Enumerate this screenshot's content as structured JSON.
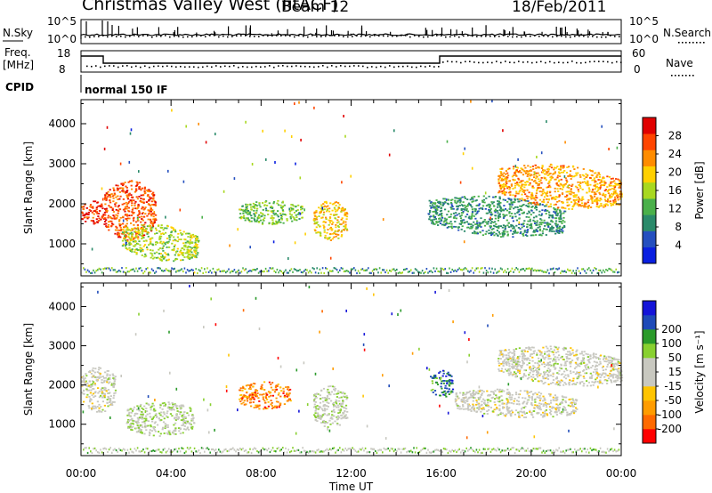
{
  "header": {
    "title": "Christmas Valley West (fitACF)",
    "beam": "Beam 12",
    "date": "18/Feb/2011"
  },
  "panel_labels": {
    "nsky": "N.Sky",
    "nsearch": "N.Search",
    "freq_line1": "Freq.",
    "freq_line2": "[MHz]",
    "nave": "Nave",
    "cpid": "CPID",
    "cpid_value": "normal 150 IF"
  },
  "noise_axis": {
    "left_ticks": [
      "10^5",
      "10^0"
    ],
    "right_ticks": [
      "10^5",
      "10^0"
    ]
  },
  "freq_axis": {
    "left_ticks": [
      "18",
      "8"
    ],
    "right_ticks": [
      "60",
      "0"
    ]
  },
  "colors": {
    "power_scale": [
      "#0a1fe0",
      "#244fbf",
      "#2a8a6a",
      "#4ab04a",
      "#a8d820",
      "#ffd000",
      "#ff8c00",
      "#ff4500",
      "#e00000"
    ],
    "velocity_scale": [
      "#ff0000",
      "#ff6a00",
      "#ff9c00",
      "#ffc400",
      "#c8c8c0",
      "#c8c8c0",
      "#88d030",
      "#2a9a2a",
      "#1e4ab8",
      "#1414d8"
    ]
  },
  "chart_data": [
    {
      "type": "heatmap",
      "name": "power",
      "ylabel": "Slant Range [km]",
      "ylim": [
        200,
        4600
      ],
      "xlim": [
        0,
        24
      ],
      "y_ticks": [
        1000,
        2000,
        3000,
        4000
      ],
      "colorbar": {
        "label": "Power [dB]",
        "ticks": [
          "4",
          "8",
          "12",
          "16",
          "20",
          "24",
          "28"
        ],
        "range": [
          0,
          32
        ]
      },
      "echo_regions": [
        {
          "t": [
            0.0,
            1.0
          ],
          "r": [
            1500,
            2100
          ],
          "level": 28
        },
        {
          "t": [
            1.0,
            3.3
          ],
          "r": [
            1100,
            2600
          ],
          "level": 26
        },
        {
          "t": [
            1.8,
            5.2
          ],
          "r": [
            600,
            1500
          ],
          "level": 16
        },
        {
          "t": [
            7.0,
            9.8
          ],
          "r": [
            1500,
            2100
          ],
          "level": 14
        },
        {
          "t": [
            10.3,
            11.8
          ],
          "r": [
            1100,
            2100
          ],
          "level": 20
        },
        {
          "t": [
            15.4,
            21.5
          ],
          "r": [
            1200,
            2200
          ],
          "level": 10
        },
        {
          "t": [
            18.5,
            24.0
          ],
          "r": [
            1900,
            3000
          ],
          "level": 22
        }
      ]
    },
    {
      "type": "heatmap",
      "name": "velocity",
      "ylabel": "Slant Range [km]",
      "xlabel": "Time UT",
      "ylim": [
        200,
        4600
      ],
      "xlim": [
        0,
        24
      ],
      "y_ticks": [
        1000,
        2000,
        3000,
        4000
      ],
      "x_tick_labels": [
        "00:00",
        "04:00",
        "08:00",
        "12:00",
        "16:00",
        "20:00",
        "00:00"
      ],
      "colorbar": {
        "label": "Velocity [m s⁻¹]",
        "ticks": [
          "-200",
          "-100",
          "-50",
          "-15",
          "15",
          "50",
          "100",
          "200"
        ],
        "range": [
          -250,
          250
        ]
      },
      "echo_regions": [
        {
          "t": [
            0.0,
            1.5
          ],
          "r": [
            1300,
            2500
          ],
          "velocity": 0
        },
        {
          "t": [
            2.0,
            5.0
          ],
          "r": [
            700,
            1600
          ],
          "velocity": 30
        },
        {
          "t": [
            7.0,
            9.3
          ],
          "r": [
            1400,
            2100
          ],
          "velocity": -150
        },
        {
          "t": [
            10.3,
            11.8
          ],
          "r": [
            900,
            2000
          ],
          "velocity": 20
        },
        {
          "t": [
            15.5,
            16.5
          ],
          "r": [
            1700,
            2400
          ],
          "velocity": 150
        },
        {
          "t": [
            16.5,
            22.0
          ],
          "r": [
            1200,
            1900
          ],
          "velocity": 0
        },
        {
          "t": [
            18.5,
            24.0
          ],
          "r": [
            2000,
            3000
          ],
          "velocity": 0
        }
      ]
    }
  ]
}
